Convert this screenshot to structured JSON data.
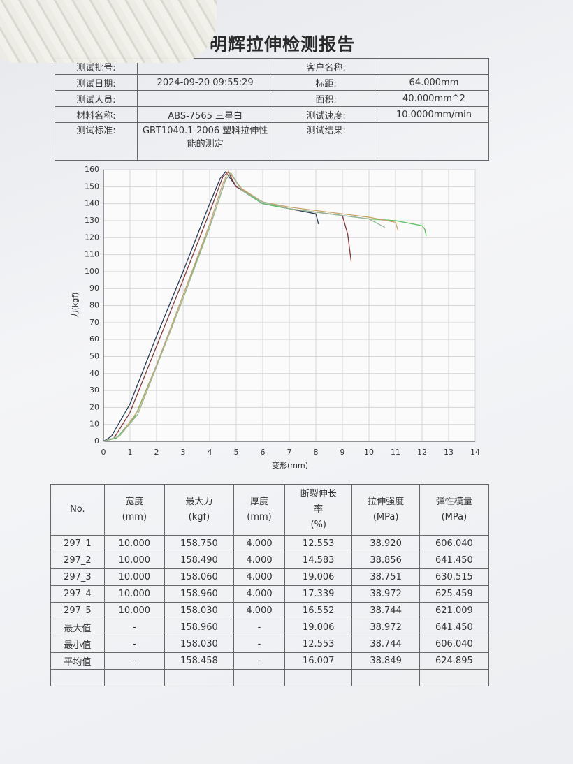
{
  "header": {
    "title": "明辉拉伸检测报告"
  },
  "info": {
    "left": [
      [
        "测试批号:"
      ],
      [
        "测试日期:",
        "2024-09-20 09:55:29"
      ],
      [
        "测试人员:"
      ],
      [
        "材料名称:",
        "ABS-7565  三星白"
      ],
      [
        "测试标准:",
        "GBT1040.1-2006 塑料拉伸性能的测定"
      ]
    ],
    "right": [
      [
        "客户名称:"
      ],
      [
        "标距:",
        "64.000mm"
      ],
      [
        "面积:",
        "40.000mm^2"
      ],
      [
        "测试速度:",
        "10.0000mm/min"
      ],
      [
        "测试结果:"
      ]
    ]
  },
  "chart_data": {
    "type": "line",
    "x_label": "变形(mm)",
    "y_label": "力(kgf)",
    "xlim": [
      0,
      14
    ],
    "xticks": [
      0,
      1,
      2,
      3,
      4,
      5,
      6,
      7,
      8,
      9,
      10,
      11,
      12,
      13,
      14
    ],
    "ylim": [
      0,
      160
    ],
    "yticks": [
      0,
      10,
      20,
      30,
      40,
      50,
      60,
      70,
      80,
      90,
      100,
      110,
      120,
      130,
      140,
      150,
      160
    ],
    "grid": true,
    "series": [
      {
        "color": "#2b3a55",
        "x": [
          0,
          0.3,
          1,
          2,
          3,
          4,
          4.4,
          4.6,
          5,
          6,
          7,
          8,
          8.05,
          8.1
        ],
        "values": [
          0,
          3,
          22,
          62,
          100,
          140,
          155,
          158.75,
          150,
          140,
          137,
          134,
          131,
          128
        ]
      },
      {
        "color": "#8a3a3a",
        "x": [
          0,
          0.4,
          1,
          2,
          3,
          4,
          4.5,
          4.7,
          5,
          6,
          7,
          8,
          9,
          9.2,
          9.33
        ],
        "values": [
          0,
          2,
          17,
          56,
          95,
          135,
          156,
          158.49,
          150,
          141,
          137,
          135,
          133,
          122,
          106
        ]
      },
      {
        "color": "#5cc25c",
        "x": [
          0,
          0.5,
          1.2,
          2,
          3,
          4,
          4.6,
          4.8,
          5.2,
          6,
          7,
          8,
          9,
          10,
          11,
          12,
          12.1,
          12.16
        ],
        "values": [
          0,
          2,
          15,
          45,
          86,
          126,
          154,
          158.06,
          148,
          140,
          137,
          135,
          133,
          131,
          130,
          127,
          125,
          121
        ]
      },
      {
        "color": "#c9a46a",
        "x": [
          0,
          0.6,
          1.3,
          2,
          3,
          4,
          4.5,
          4.7,
          5.2,
          6,
          7,
          8,
          9,
          10,
          11,
          11.1
        ],
        "values": [
          0,
          3,
          18,
          45,
          86,
          128,
          152,
          158.96,
          149,
          141,
          138,
          136,
          134,
          132,
          129,
          124
        ]
      },
      {
        "color": "#9bb59b",
        "x": [
          0,
          0.6,
          1.3,
          2,
          3,
          4,
          4.6,
          4.8,
          5.2,
          6,
          7,
          8,
          9,
          10,
          10.6
        ],
        "values": [
          0,
          3,
          16,
          44,
          84,
          126,
          154,
          158.03,
          148,
          141,
          137,
          135,
          133,
          131,
          126
        ]
      }
    ]
  },
  "results": {
    "header": [
      [
        "No."
      ],
      [
        "宽度",
        "(mm)"
      ],
      [
        "最大力",
        "(kgf)"
      ],
      [
        "厚度",
        "(mm)"
      ],
      [
        "断裂伸长",
        "率",
        "(%)"
      ],
      [
        "拉伸强度",
        "(MPa)"
      ],
      [
        "弹性模量",
        "(MPa)"
      ]
    ],
    "rows": [
      [
        "297_1",
        "10.000",
        "158.750",
        "4.000",
        "12.553",
        "38.920",
        "606.040"
      ],
      [
        "297_2",
        "10.000",
        "158.490",
        "4.000",
        "14.583",
        "38.856",
        "641.450"
      ],
      [
        "297_3",
        "10.000",
        "158.060",
        "4.000",
        "19.006",
        "38.751",
        "630.515"
      ],
      [
        "297_4",
        "10.000",
        "158.960",
        "4.000",
        "17.339",
        "38.972",
        "625.459"
      ],
      [
        "297_5",
        "10.000",
        "158.030",
        "4.000",
        "16.552",
        "38.744",
        "621.009"
      ],
      [
        "最大值",
        "-",
        "158.960",
        "-",
        "19.006",
        "38.972",
        "641.450"
      ],
      [
        "最小值",
        "-",
        "158.030",
        "-",
        "12.553",
        "38.744",
        "606.040"
      ],
      [
        "平均值",
        "-",
        "158.458",
        "-",
        "16.007",
        "38.849",
        "624.895"
      ]
    ]
  }
}
